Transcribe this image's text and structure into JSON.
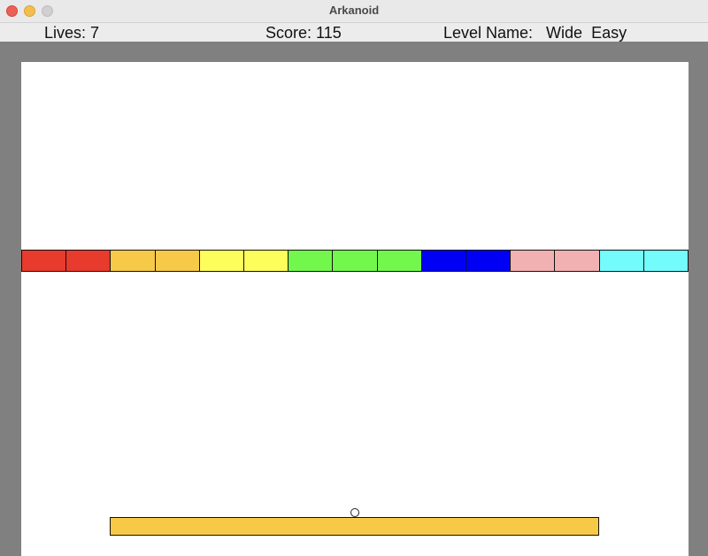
{
  "window": {
    "title": "Arkanoid"
  },
  "hud": {
    "lives_label": "Lives: 7",
    "score_label": "Score: 115",
    "level_label": "Level Name:   Wide  Easy"
  },
  "bricks": {
    "colors": [
      "#e83a2d",
      "#e83a2d",
      "#f6c948",
      "#f6c948",
      "#fdfd5c",
      "#fdfd5c",
      "#73f74d",
      "#73f74d",
      "#73f74d",
      "#0000f5",
      "#0000f5",
      "#f1b1b2",
      "#f1b1b2",
      "#74fcfd",
      "#74fcfd"
    ]
  },
  "paddle": {
    "color": "#f6ca47"
  },
  "ball": {
    "color": "#ffffff"
  }
}
